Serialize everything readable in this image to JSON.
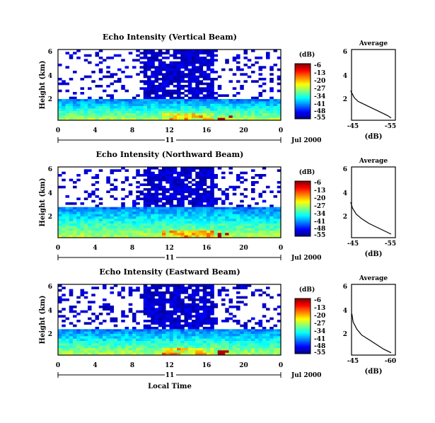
{
  "chart_data": [
    {
      "type": "heatmap",
      "title": "Echo Intensity (Vertical Beam)",
      "ylabel": "Height (km)",
      "y_ticks": [
        "2",
        "4",
        "6"
      ],
      "x_ticks": [
        "0",
        "4",
        "8",
        "12",
        "16",
        "20",
        "0"
      ],
      "xlim": [
        0,
        24
      ],
      "ylim": [
        0,
        6
      ],
      "day_label": "11",
      "date_label": "Jul 2000",
      "colorbar": {
        "label": "(dB)",
        "ticks": [
          "-6",
          "-13",
          "-20",
          "-27",
          "-34",
          "-41",
          "-48",
          "-55"
        ]
      },
      "profile": {
        "title": "Average",
        "y_ticks": [
          "2",
          "4",
          "6"
        ],
        "x_ticks": [
          "-45",
          "-55"
        ],
        "xlabel": "(dB)",
        "points": [
          [
            -44,
            2.5
          ],
          [
            -44.5,
            2.2
          ],
          [
            -45,
            1.9
          ],
          [
            -46,
            1.6
          ],
          [
            -48,
            1.3
          ],
          [
            -50,
            1.0
          ],
          [
            -52,
            0.7
          ],
          [
            -54,
            0.4
          ],
          [
            -55,
            0.2
          ]
        ]
      }
    },
    {
      "type": "heatmap",
      "title": "Echo Intensity (Northward Beam)",
      "ylabel": "Height (km)",
      "y_ticks": [
        "2",
        "4",
        "6"
      ],
      "x_ticks": [
        "0",
        "4",
        "8",
        "12",
        "16",
        "20",
        "0"
      ],
      "xlim": [
        0,
        24
      ],
      "ylim": [
        0,
        6
      ],
      "day_label": "11",
      "date_label": "Jul 2000",
      "colorbar": {
        "label": "(dB)",
        "ticks": [
          "-6",
          "-13",
          "-20",
          "-27",
          "-34",
          "-41",
          "-48",
          "-55"
        ]
      },
      "profile": {
        "title": "Average",
        "y_ticks": [
          "2",
          "4",
          "6"
        ],
        "x_ticks": [
          "-45",
          "-55"
        ],
        "xlabel": "(dB)",
        "points": [
          [
            -44,
            3.0
          ],
          [
            -44.5,
            2.5
          ],
          [
            -45.5,
            2.0
          ],
          [
            -47,
            1.6
          ],
          [
            -49,
            1.2
          ],
          [
            -51,
            0.9
          ],
          [
            -53,
            0.6
          ],
          [
            -55,
            0.3
          ]
        ]
      }
    },
    {
      "type": "heatmap",
      "title": "Echo Intensity (Eastward Beam)",
      "ylabel": "Height (km)",
      "y_ticks": [
        "2",
        "4",
        "6"
      ],
      "x_ticks": [
        "0",
        "4",
        "8",
        "12",
        "16",
        "20",
        "0"
      ],
      "xlim": [
        0,
        24
      ],
      "ylim": [
        0,
        6
      ],
      "day_label": "11",
      "date_label": "Jul 2000",
      "xlabel": "Local Time",
      "colorbar": {
        "label": "(dB)",
        "ticks": [
          "-6",
          "-13",
          "-20",
          "-27",
          "-34",
          "-41",
          "-48",
          "-55"
        ]
      },
      "profile": {
        "title": "Average",
        "y_ticks": [
          "2",
          "4",
          "6"
        ],
        "x_ticks": [
          "-45",
          "-60"
        ],
        "xlabel": "(dB)",
        "points": [
          [
            -44,
            3.5
          ],
          [
            -44.5,
            2.8
          ],
          [
            -46,
            2.2
          ],
          [
            -48,
            1.7
          ],
          [
            -51,
            1.3
          ],
          [
            -54,
            0.9
          ],
          [
            -57,
            0.5
          ],
          [
            -60,
            0.2
          ]
        ]
      }
    }
  ]
}
